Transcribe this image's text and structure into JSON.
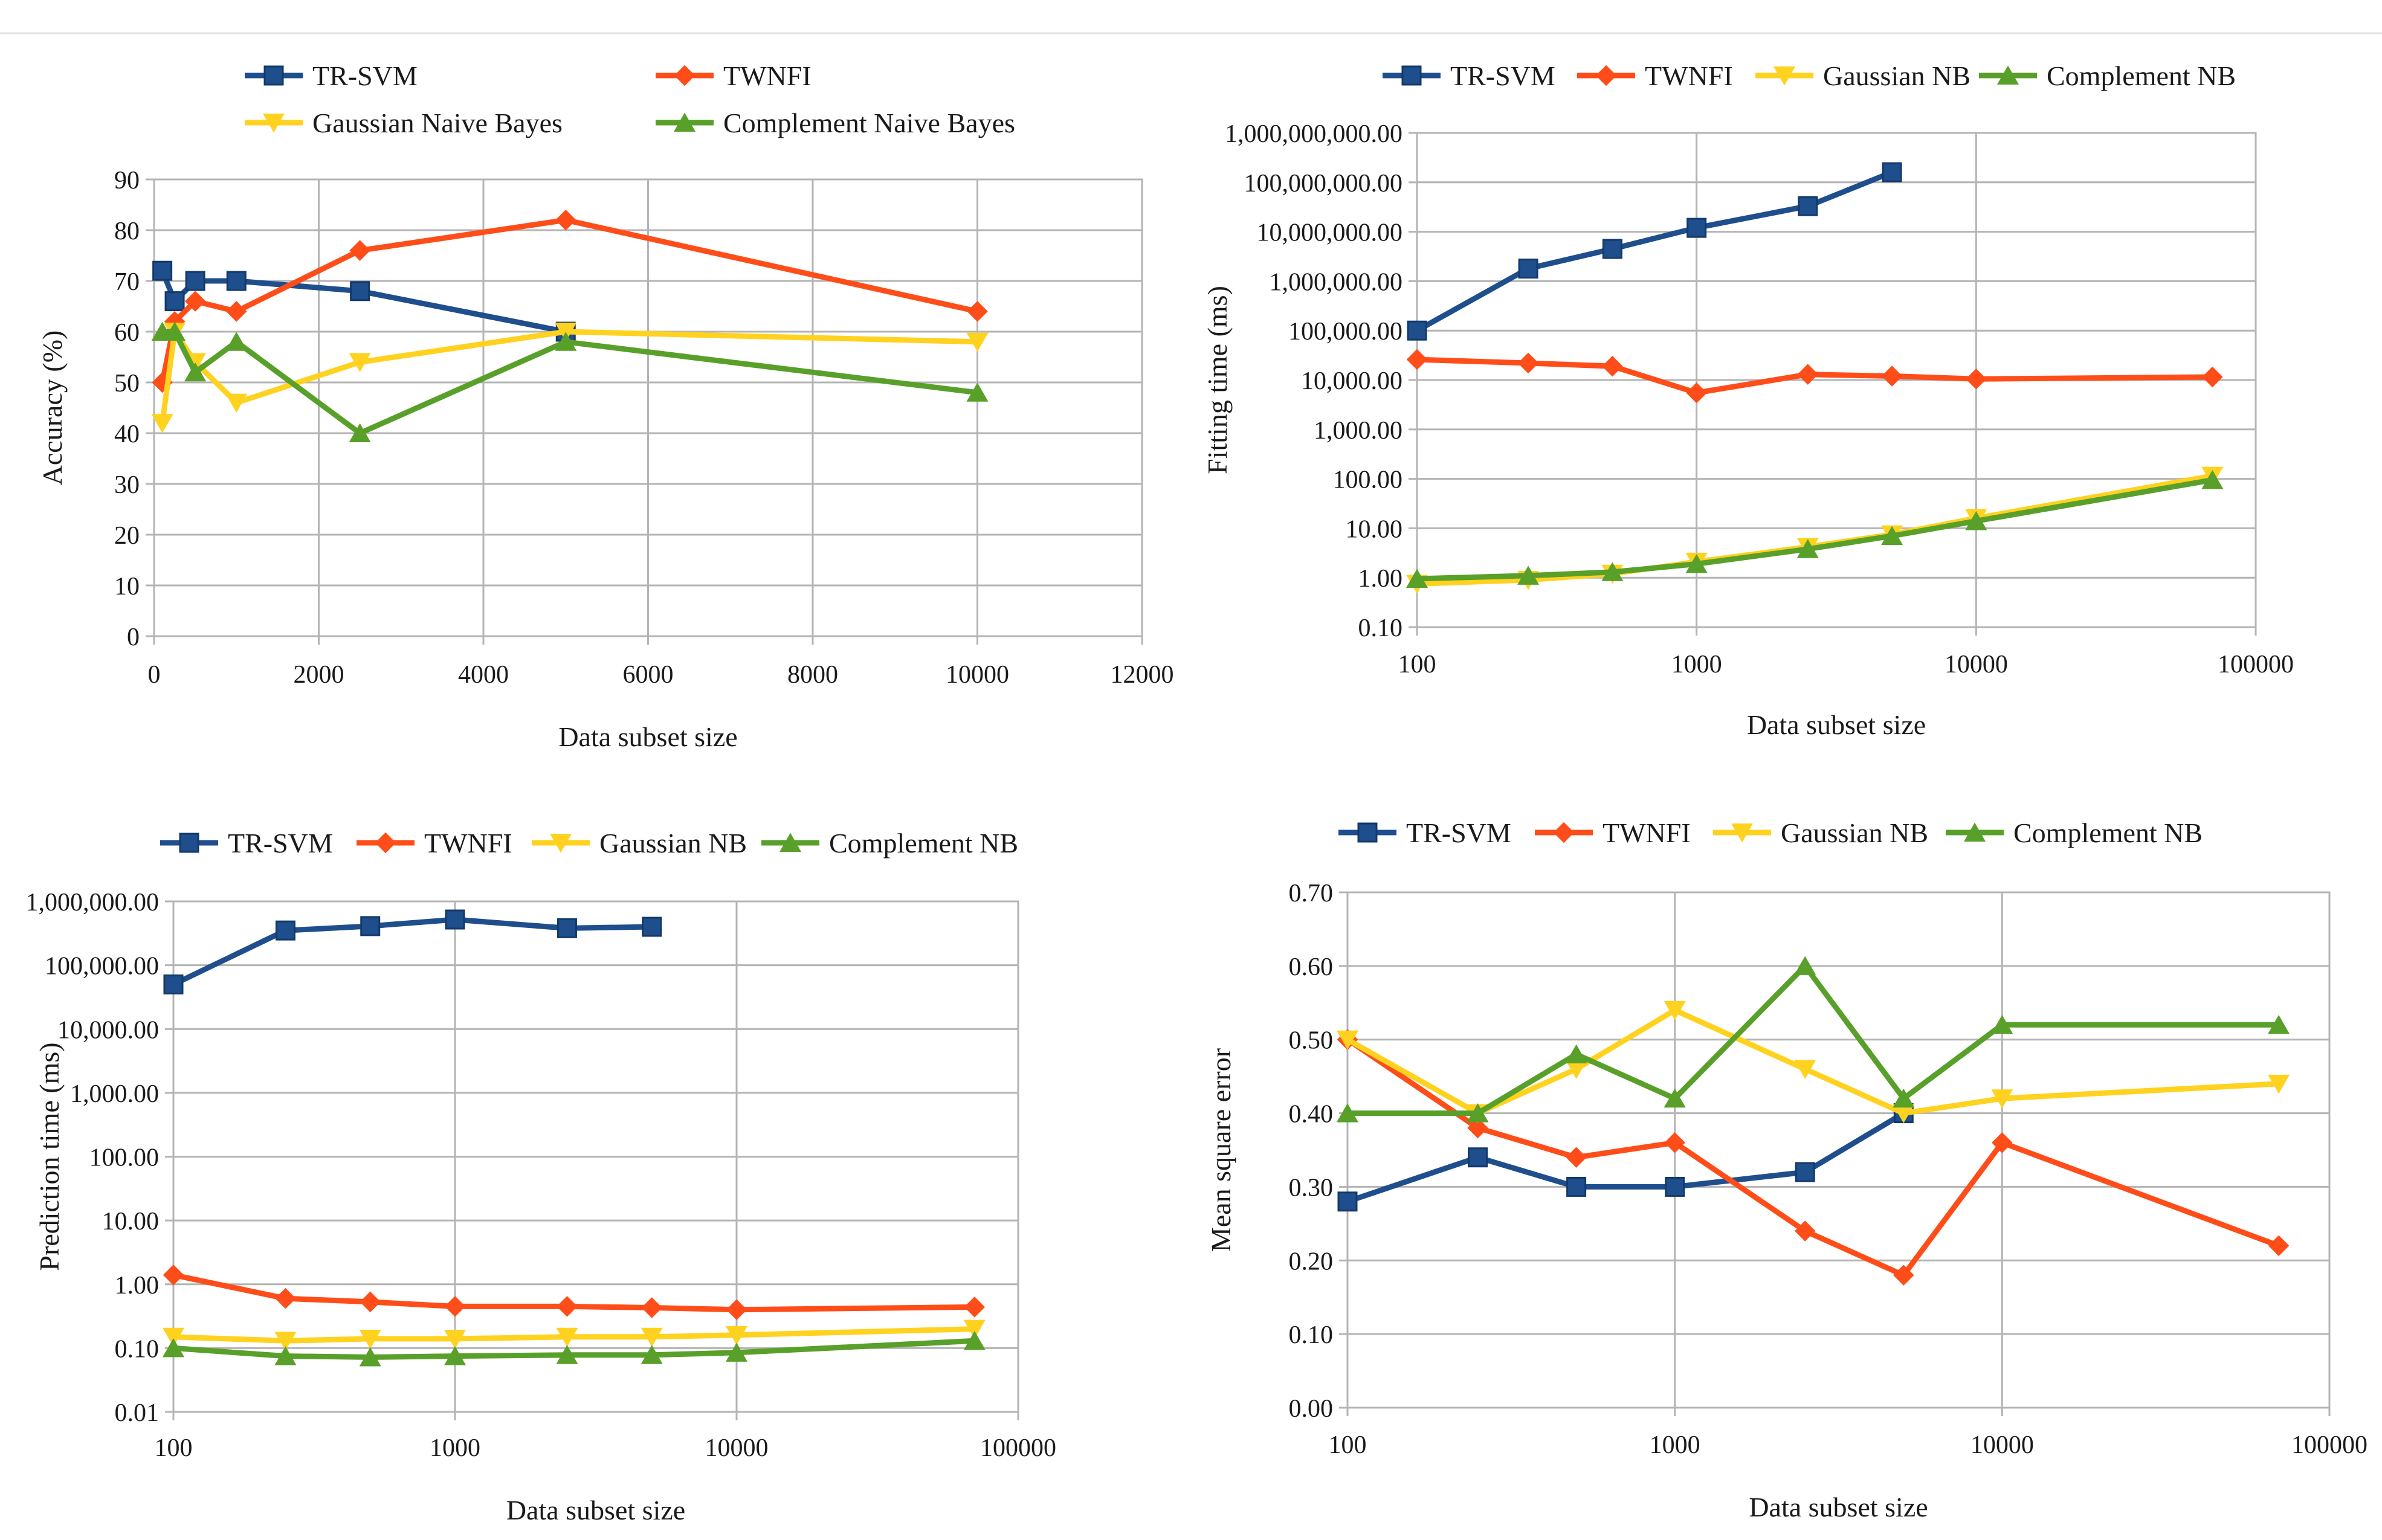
{
  "colors": {
    "TR-SVM": "#1f4e8c",
    "TWNFI": "#ff4d1a",
    "Gaussian NB": "#ffd21f",
    "Complement NB": "#58a02a",
    "grid": "#b4b4b4",
    "frame": "#b4b4b4"
  },
  "chart_data": [
    {
      "type": "line",
      "id": "accuracy",
      "title": "",
      "xlabel": "Data subset size",
      "ylabel": "Accuracy (%)",
      "xscale": "linear",
      "yscale": "linear",
      "xlim": [
        0,
        12000
      ],
      "ylim": [
        0,
        90
      ],
      "xticks": [
        0,
        2000,
        4000,
        6000,
        8000,
        10000,
        12000
      ],
      "xtick_labels": [
        "0",
        "2000",
        "4000",
        "6000",
        "8000",
        "10000",
        "12000"
      ],
      "yticks": [
        0,
        10,
        20,
        30,
        40,
        50,
        60,
        70,
        80,
        90
      ],
      "ytick_labels": [
        "0",
        "10",
        "20",
        "30",
        "40",
        "50",
        "60",
        "70",
        "80",
        "90"
      ],
      "grid": true,
      "legend_position": "top",
      "series": [
        {
          "name": "TR-SVM",
          "color_key": "TR-SVM",
          "marker": "square",
          "x": [
            100,
            250,
            500,
            1000,
            2500,
            5000
          ],
          "y": [
            72,
            66,
            70,
            70,
            68,
            60
          ]
        },
        {
          "name": "TWNFI",
          "color_key": "TWNFI",
          "marker": "diamond",
          "x": [
            100,
            250,
            500,
            1000,
            2500,
            5000,
            10000
          ],
          "y": [
            50,
            62,
            66,
            64,
            76,
            82,
            64
          ]
        },
        {
          "name": "Gaussian Naive Bayes",
          "color_key": "Gaussian NB",
          "marker": "triangle-down",
          "x": [
            100,
            250,
            500,
            1000,
            2500,
            5000,
            10000
          ],
          "y": [
            42,
            60,
            54,
            46,
            54,
            60,
            58
          ]
        },
        {
          "name": "Complement Naive Bayes",
          "color_key": "Complement NB",
          "marker": "triangle-up",
          "x": [
            100,
            250,
            500,
            1000,
            2500,
            5000,
            10000
          ],
          "y": [
            60,
            60,
            52,
            58,
            40,
            58,
            48
          ]
        }
      ]
    },
    {
      "type": "line",
      "id": "fitting-time",
      "title": "",
      "xlabel": "Data subset size",
      "ylabel": "Fitting time (ms)",
      "xscale": "log",
      "yscale": "log",
      "xlim": [
        100,
        100000
      ],
      "ylim": [
        0.1,
        1000000000
      ],
      "xticks": [
        100,
        1000,
        10000,
        100000
      ],
      "xtick_labels": [
        "100",
        "1000",
        "10000",
        "100000"
      ],
      "yticks": [
        0.1,
        1,
        10,
        100,
        1000,
        10000,
        100000,
        1000000,
        10000000,
        100000000,
        1000000000
      ],
      "ytick_labels": [
        "0.10",
        "1.00",
        "10.00",
        "100.00",
        "1,000.00",
        "10,000.00",
        "100,000.00",
        "1,000,000.00",
        "10,000,000.00",
        "100,000,000.00",
        "1,000,000,000.00"
      ],
      "grid": true,
      "legend_position": "top",
      "series": [
        {
          "name": "TR-SVM",
          "color_key": "TR-SVM",
          "marker": "square",
          "x": [
            100,
            250,
            500,
            1000,
            2500,
            5000
          ],
          "y": [
            100000,
            1800000,
            4500000,
            12000000,
            33000000,
            160000000
          ]
        },
        {
          "name": "TWNFI",
          "color_key": "TWNFI",
          "marker": "diamond",
          "x": [
            100,
            250,
            500,
            1000,
            2500,
            5000,
            10000,
            70000
          ],
          "y": [
            26000,
            22000,
            19000,
            5500,
            13000,
            12000,
            10500,
            11500
          ]
        },
        {
          "name": "Gaussian NB",
          "color_key": "Gaussian NB",
          "marker": "triangle-down",
          "x": [
            100,
            250,
            500,
            1000,
            2500,
            5000,
            10000,
            70000
          ],
          "y": [
            0.75,
            0.9,
            1.2,
            2.1,
            4.2,
            7.5,
            16,
            115
          ]
        },
        {
          "name": "Complement NB",
          "color_key": "Complement NB",
          "marker": "triangle-up",
          "x": [
            100,
            250,
            500,
            1000,
            2500,
            5000,
            10000,
            70000
          ],
          "y": [
            0.95,
            1.1,
            1.3,
            1.9,
            3.8,
            7,
            14,
            95
          ]
        }
      ]
    },
    {
      "type": "line",
      "id": "prediction-time",
      "title": "",
      "xlabel": "Data subset size",
      "ylabel": "Prediction time (ms)",
      "xscale": "log",
      "yscale": "log",
      "xlim": [
        100,
        100000
      ],
      "ylim": [
        0.01,
        1000000
      ],
      "xticks": [
        100,
        1000,
        10000,
        100000
      ],
      "xtick_labels": [
        "100",
        "1000",
        "10000",
        "100000"
      ],
      "yticks": [
        0.01,
        0.1,
        1,
        10,
        100,
        1000,
        10000,
        100000,
        1000000
      ],
      "ytick_labels": [
        "0.01",
        "0.10",
        "1.00",
        "10.00",
        "100.00",
        "1,000.00",
        "10,000.00",
        "100,000.00",
        "1,000,000.00"
      ],
      "grid": true,
      "legend_position": "top",
      "series": [
        {
          "name": "TR-SVM",
          "color_key": "TR-SVM",
          "marker": "square",
          "x": [
            100,
            250,
            500,
            1000,
            2500,
            5000
          ],
          "y": [
            50000,
            350000,
            410000,
            520000,
            380000,
            400000
          ]
        },
        {
          "name": "TWNFI",
          "color_key": "TWNFI",
          "marker": "diamond",
          "x": [
            100,
            250,
            500,
            1000,
            2500,
            5000,
            10000,
            70000
          ],
          "y": [
            1.4,
            0.6,
            0.53,
            0.45,
            0.45,
            0.43,
            0.4,
            0.44
          ]
        },
        {
          "name": "Gaussian NB",
          "color_key": "Gaussian NB",
          "marker": "triangle-down",
          "x": [
            100,
            250,
            500,
            1000,
            2500,
            5000,
            10000,
            70000
          ],
          "y": [
            0.15,
            0.13,
            0.14,
            0.14,
            0.15,
            0.15,
            0.16,
            0.2
          ]
        },
        {
          "name": "Complement NB",
          "color_key": "Complement NB",
          "marker": "triangle-up",
          "x": [
            100,
            250,
            500,
            1000,
            2500,
            5000,
            10000,
            70000
          ],
          "y": [
            0.1,
            0.075,
            0.072,
            0.075,
            0.078,
            0.078,
            0.085,
            0.13
          ]
        }
      ]
    },
    {
      "type": "line",
      "id": "mse",
      "title": "",
      "xlabel": "Data subset size",
      "ylabel": "Mean square error",
      "xscale": "log",
      "yscale": "linear",
      "xlim": [
        100,
        100000
      ],
      "ylim": [
        0,
        0.7
      ],
      "xticks": [
        100,
        1000,
        10000,
        100000
      ],
      "xtick_labels": [
        "100",
        "1000",
        "10000",
        "100000"
      ],
      "yticks": [
        0,
        0.1,
        0.2,
        0.3,
        0.4,
        0.5,
        0.6,
        0.7
      ],
      "ytick_labels": [
        "0.00",
        "0.10",
        "0.20",
        "0.30",
        "0.40",
        "0.50",
        "0.60",
        "0.70"
      ],
      "grid": true,
      "legend_position": "top",
      "series": [
        {
          "name": "TR-SVM",
          "color_key": "TR-SVM",
          "marker": "square",
          "x": [
            100,
            250,
            500,
            1000,
            2500,
            5000
          ],
          "y": [
            0.28,
            0.34,
            0.3,
            0.3,
            0.32,
            0.4
          ]
        },
        {
          "name": "TWNFI",
          "color_key": "TWNFI",
          "marker": "diamond",
          "x": [
            100,
            250,
            500,
            1000,
            2500,
            5000,
            10000,
            70000
          ],
          "y": [
            0.5,
            0.38,
            0.34,
            0.36,
            0.24,
            0.18,
            0.36,
            0.22
          ]
        },
        {
          "name": "Gaussian NB",
          "color_key": "Gaussian NB",
          "marker": "triangle-down",
          "x": [
            100,
            250,
            500,
            1000,
            2500,
            5000,
            10000,
            70000
          ],
          "y": [
            0.5,
            0.4,
            0.46,
            0.54,
            0.46,
            0.4,
            0.42,
            0.44
          ]
        },
        {
          "name": "Complement NB",
          "color_key": "Complement NB",
          "marker": "triangle-up",
          "x": [
            100,
            250,
            500,
            1000,
            2500,
            5000,
            10000,
            70000
          ],
          "y": [
            0.4,
            0.4,
            0.48,
            0.42,
            0.6,
            0.42,
            0.52,
            0.52
          ]
        }
      ]
    }
  ]
}
